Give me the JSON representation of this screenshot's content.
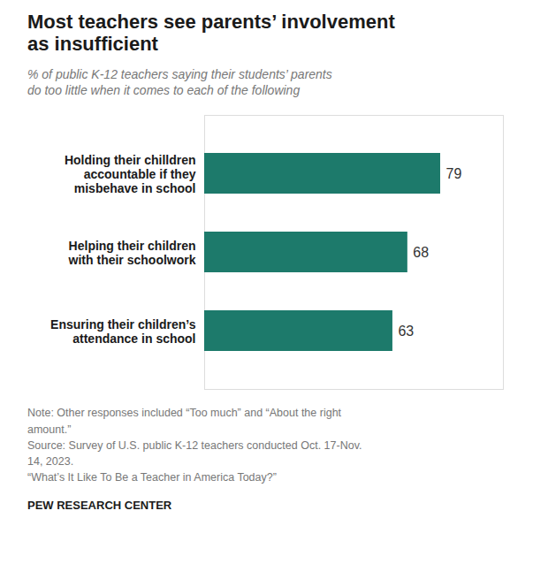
{
  "chart_data": {
    "type": "bar",
    "title": "Most teachers see parents’ involvement\nas insufficient",
    "subtitle": "% of public K-12 teachers saying their students’ parents\ndo too little when it comes to each of the following",
    "categories": [
      "Holding their chilldren\naccountable if they\nmisbehave in school",
      "Helping their children\nwith their schoolwork",
      "Ensuring their children’s\nattendance in school"
    ],
    "values": [
      79,
      68,
      63
    ],
    "color": "#1d7a6b",
    "orientation": "horizontal",
    "xlim": [
      0,
      100
    ],
    "grid": false,
    "data_labels": true,
    "tick_labels": "y",
    "annotations": [
      "Note: Other responses included “Too much” and “About the right\namount.”\nSource: Survey of U.S. public K-12 teachers conducted Oct. 17-Nov.\n14, 2023.\n“What’s It Like To Be a Teacher in America Today?”",
      "PEW RESEARCH CENTER"
    ]
  }
}
